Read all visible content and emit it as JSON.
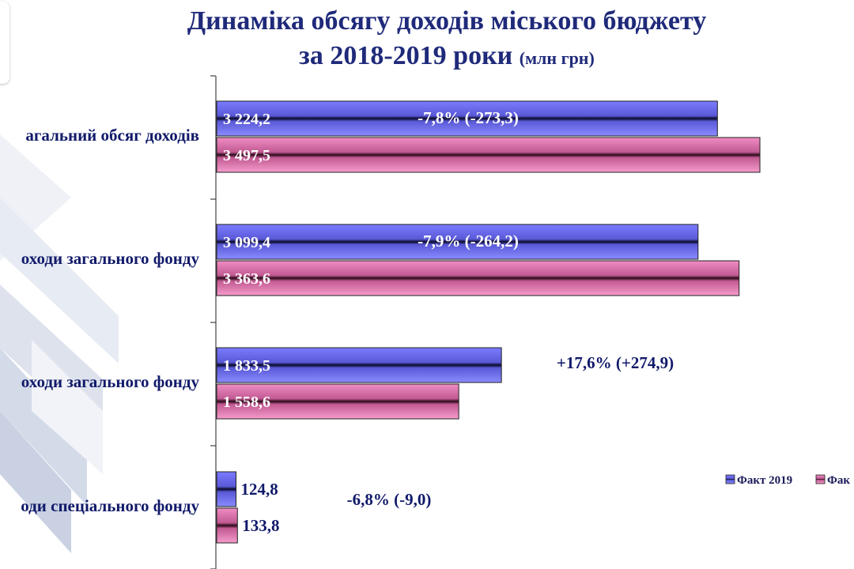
{
  "header": {
    "title_line1": "Динаміка обсягу доходів міського бюджету",
    "title_line2": "за 2018-2019 роки",
    "title_unit": "(млн грн)"
  },
  "colors": {
    "series_2019": "#6f6ff0",
    "series_2018": "#e080b4",
    "text_dark": "#111a6a",
    "title": "#1f2a7a"
  },
  "chart_data": {
    "type": "bar",
    "orientation": "horizontal",
    "categories": [
      "агальний обсяг доходів",
      "оходи загального фонду",
      "оходи загального фонду",
      "оди спеціального фонду"
    ],
    "series": [
      {
        "name": "Факт 2019",
        "values": [
          3224.2,
          3099.4,
          1833.5,
          124.8
        ],
        "labels": [
          "3 224,2",
          "3 099,4",
          "1 833,5",
          "124,8"
        ]
      },
      {
        "name": "Фак",
        "values": [
          3497.5,
          3363.6,
          1558.6,
          133.8
        ],
        "labels": [
          "3 497,5",
          "3 363,6",
          "1 558,6",
          "133,8"
        ]
      }
    ],
    "annotations": [
      "-7,8% (-273,3)",
      "-7,9% (-264,2)",
      "+17,6% (+274,9)",
      "-6,8% (-9,0)"
    ],
    "legend": {
      "position": "right",
      "items": [
        "Факт 2019",
        "Фак"
      ]
    },
    "xlim": [
      0,
      3800
    ],
    "grid": false
  }
}
